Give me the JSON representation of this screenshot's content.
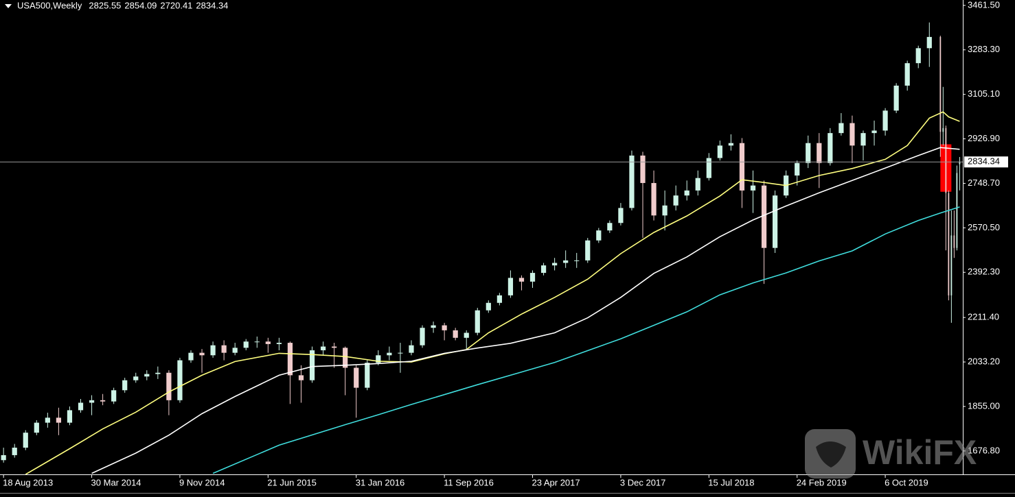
{
  "chart_data": {
    "type": "candlestick",
    "title": "USA500,Weekly",
    "x": [
      "2013-08-18",
      "2013-09-15",
      "2013-10-13",
      "2013-11-10",
      "2013-12-08",
      "2014-01-05",
      "2014-02-02",
      "2014-03-02",
      "2014-03-30",
      "2014-04-27",
      "2014-05-25",
      "2014-06-22",
      "2014-07-20",
      "2014-08-17",
      "2014-09-14",
      "2014-10-12",
      "2014-11-09",
      "2014-12-07",
      "2015-01-04",
      "2015-02-01",
      "2015-03-01",
      "2015-03-29",
      "2015-04-26",
      "2015-05-24",
      "2015-06-21",
      "2015-07-19",
      "2015-08-16",
      "2015-09-13",
      "2015-10-11",
      "2015-11-08",
      "2015-12-06",
      "2016-01-03",
      "2016-01-31",
      "2016-02-28",
      "2016-03-27",
      "2016-04-24",
      "2016-05-22",
      "2016-06-19",
      "2016-07-17",
      "2016-08-14",
      "2016-09-11",
      "2016-10-09",
      "2016-11-06",
      "2016-12-04",
      "2017-01-01",
      "2017-01-29",
      "2017-02-26",
      "2017-03-26",
      "2017-04-23",
      "2017-05-21",
      "2017-06-18",
      "2017-07-16",
      "2017-08-13",
      "2017-09-10",
      "2017-10-08",
      "2017-11-05",
      "2017-12-03",
      "2017-12-31",
      "2018-01-28",
      "2018-02-25",
      "2018-03-25",
      "2018-04-22",
      "2018-05-20",
      "2018-06-17",
      "2018-07-15",
      "2018-08-12",
      "2018-09-09",
      "2018-10-07",
      "2018-11-04",
      "2018-12-02",
      "2018-12-30",
      "2019-01-27",
      "2019-02-24",
      "2019-03-24",
      "2019-04-21",
      "2019-05-19",
      "2019-06-16",
      "2019-07-14",
      "2019-08-11",
      "2019-09-08",
      "2019-10-06",
      "2019-11-03",
      "2019-12-01",
      "2019-12-29",
      "2020-01-26",
      "2020-02-23",
      "2020-03-01",
      "2020-03-08",
      "2020-03-15",
      "2020-03-22",
      "2020-03-29",
      "2020-04-05",
      "2020-04-12"
    ],
    "open": [
      1640,
      1660,
      1690,
      1750,
      1790,
      1810,
      1790,
      1840,
      1870,
      1880,
      1875,
      1920,
      1960,
      1975,
      1985,
      1990,
      1880,
      2040,
      2070,
      2060,
      2100,
      2070,
      2090,
      2115,
      2115,
      2105,
      2110,
      1980,
      1960,
      2080,
      2095,
      2090,
      2010,
      1930,
      2030,
      2060,
      2070,
      2070,
      2100,
      2170,
      2180,
      2160,
      2130,
      2150,
      2240,
      2270,
      2300,
      2370,
      2355,
      2390,
      2420,
      2430,
      2440,
      2440,
      2520,
      2560,
      2590,
      2650,
      2860,
      2750,
      2620,
      2660,
      2700,
      2720,
      2770,
      2850,
      2900,
      2910,
      2720,
      2740,
      2490,
      2700,
      2780,
      2830,
      2910,
      2830,
      2950,
      2990,
      2900,
      2950,
      2960,
      3040,
      3140,
      3230,
      3290,
      3335,
      2955,
      2970,
      2710,
      2300,
      2540,
      2490,
      2825.55
    ],
    "high": [
      1690,
      1705,
      1760,
      1800,
      1830,
      1850,
      1855,
      1885,
      1900,
      1905,
      1930,
      1970,
      1990,
      2000,
      2015,
      2000,
      2050,
      2080,
      2085,
      2115,
      2120,
      2110,
      2125,
      2135,
      2130,
      2130,
      2115,
      2020,
      2095,
      2115,
      2110,
      2095,
      2020,
      2040,
      2080,
      2095,
      2110,
      2120,
      2180,
      2195,
      2190,
      2170,
      2160,
      2250,
      2280,
      2310,
      2400,
      2380,
      2400,
      2430,
      2450,
      2480,
      2470,
      2530,
      2570,
      2600,
      2670,
      2880,
      2875,
      2800,
      2720,
      2740,
      2760,
      2800,
      2870,
      2920,
      2945,
      2930,
      2800,
      2760,
      2720,
      2800,
      2840,
      2940,
      2950,
      2970,
      3030,
      3020,
      2960,
      3000,
      3050,
      3150,
      3240,
      3300,
      3393,
      3340,
      3135,
      2980,
      2720,
      2640,
      2640,
      2820,
      2854.09
    ],
    "low": [
      1630,
      1650,
      1680,
      1740,
      1770,
      1740,
      1780,
      1830,
      1820,
      1860,
      1865,
      1910,
      1950,
      1960,
      1965,
      1820,
      1870,
      2030,
      1990,
      2050,
      2040,
      2060,
      2080,
      2090,
      2070,
      2080,
      1865,
      1870,
      1950,
      2060,
      2010,
      1900,
      1810,
      1920,
      2020,
      2040,
      1990,
      2060,
      2090,
      2150,
      2120,
      2120,
      2080,
      2140,
      2230,
      2260,
      2290,
      2320,
      2330,
      2380,
      2400,
      2410,
      2410,
      2430,
      2510,
      2550,
      2580,
      2640,
      2530,
      2600,
      2560,
      2640,
      2680,
      2700,
      2760,
      2840,
      2880,
      2650,
      2630,
      2346,
      2470,
      2690,
      2740,
      2810,
      2730,
      2820,
      2940,
      2830,
      2840,
      2900,
      2940,
      3030,
      3120,
      3210,
      3215,
      2855,
      2900,
      2480,
      2280,
      2190,
      2450,
      2480,
      2720.41
    ],
    "close": [
      1660,
      1690,
      1750,
      1790,
      1810,
      1790,
      1840,
      1870,
      1880,
      1875,
      1920,
      1960,
      1975,
      1985,
      1990,
      1880,
      2040,
      2070,
      2060,
      2100,
      2070,
      2090,
      2115,
      2115,
      2105,
      2110,
      1980,
      1960,
      2080,
      2095,
      2090,
      2010,
      1930,
      2030,
      2060,
      2070,
      2070,
      2100,
      2170,
      2180,
      2160,
      2130,
      2150,
      2240,
      2270,
      2300,
      2370,
      2355,
      2390,
      2420,
      2430,
      2440,
      2440,
      2520,
      2560,
      2590,
      2650,
      2860,
      2750,
      2620,
      2660,
      2700,
      2720,
      2770,
      2850,
      2900,
      2910,
      2720,
      2740,
      2490,
      2700,
      2780,
      2830,
      2910,
      2830,
      2950,
      2990,
      2900,
      2950,
      2960,
      3040,
      3140,
      3230,
      3290,
      3335,
      2955,
      2970,
      2710,
      2300,
      2540,
      2490,
      2790,
      2834.34
    ],
    "up_color": "#cdf3e6",
    "down_color": "#f0cccc",
    "moving_averages": [
      {
        "color": "#ffff80",
        "x": [
          "2013-10-13",
          "2014-02-02",
          "2014-04-27",
          "2014-07-20",
          "2014-10-12",
          "2015-01-04",
          "2015-03-29",
          "2015-07-19",
          "2015-10-11",
          "2016-01-03",
          "2016-03-27",
          "2016-06-19",
          "2016-09-11",
          "2016-11-06",
          "2017-01-01",
          "2017-03-26",
          "2017-06-18",
          "2017-09-10",
          "2017-12-03",
          "2018-02-25",
          "2018-05-20",
          "2018-08-12",
          "2018-10-07",
          "2018-12-02",
          "2019-01-27",
          "2019-04-21",
          "2019-07-14",
          "2019-10-06",
          "2019-12-01",
          "2020-01-26",
          "2020-03-01",
          "2020-03-15",
          "2020-04-12"
        ],
        "values": [
          1583,
          1686,
          1765,
          1832,
          1913,
          1980,
          2035,
          2068,
          2063,
          2055,
          2036,
          2033,
          2066,
          2083,
          2150,
          2225,
          2292,
          2365,
          2467,
          2552,
          2618,
          2698,
          2763,
          2752,
          2740,
          2780,
          2808,
          2845,
          2900,
          3010,
          3035,
          3015,
          2997
        ]
      },
      {
        "color": "#ffffff",
        "x": [
          "2014-03-30",
          "2014-07-20",
          "2014-10-12",
          "2015-01-04",
          "2015-03-29",
          "2015-07-19",
          "2015-10-11",
          "2016-01-03",
          "2016-03-27",
          "2016-06-19",
          "2016-09-11",
          "2016-12-04",
          "2017-02-26",
          "2017-06-18",
          "2017-09-10",
          "2017-12-03",
          "2018-02-25",
          "2018-05-20",
          "2018-08-12",
          "2018-11-04",
          "2019-01-27",
          "2019-04-21",
          "2019-07-14",
          "2019-10-06",
          "2019-12-29",
          "2020-02-23",
          "2020-04-12"
        ],
        "values": [
          1587,
          1668,
          1740,
          1826,
          1895,
          1980,
          2015,
          2020,
          2027,
          2036,
          2068,
          2089,
          2108,
          2150,
          2210,
          2292,
          2388,
          2454,
          2535,
          2602,
          2658,
          2711,
          2760,
          2810,
          2860,
          2892,
          2885
        ]
      },
      {
        "color": "#40dede",
        "x": [
          "2015-02-01",
          "2015-07-19",
          "2016-01-03",
          "2016-03-27",
          "2016-06-19",
          "2016-12-04",
          "2017-06-18",
          "2017-12-03",
          "2018-05-20",
          "2018-08-12",
          "2018-11-04",
          "2019-01-27",
          "2019-04-21",
          "2019-07-14",
          "2019-10-06",
          "2019-12-29",
          "2020-02-23",
          "2020-04-12"
        ],
        "values": [
          1587,
          1700,
          1782,
          1822,
          1863,
          1942,
          2031,
          2126,
          2234,
          2302,
          2350,
          2390,
          2438,
          2478,
          2546,
          2600,
          2630,
          2654
        ]
      }
    ],
    "rectangle": {
      "x0": "2020-02-23",
      "x1": "2020-03-22",
      "y0": 2715,
      "y1": 2905,
      "color": "#ff0000"
    },
    "xlim": [
      "2013-08-09",
      "2020-04-20"
    ],
    "xticks": [
      {
        "value": "2013-08-18",
        "label": "18 Aug 2013"
      },
      {
        "value": "2014-03-30",
        "label": "30 Mar 2014"
      },
      {
        "value": "2014-11-09",
        "label": "9 Nov 2014"
      },
      {
        "value": "2015-06-21",
        "label": "21 Jun 2015"
      },
      {
        "value": "2016-01-31",
        "label": "31 Jan 2016"
      },
      {
        "value": "2016-09-11",
        "label": "11 Sep 2016"
      },
      {
        "value": "2017-04-23",
        "label": "23 Apr 2017"
      },
      {
        "value": "2017-12-03",
        "label": "3 Dec 2017"
      },
      {
        "value": "2018-07-15",
        "label": "15 Jul 2018"
      },
      {
        "value": "2019-02-24",
        "label": "24 Feb 2019"
      },
      {
        "value": "2019-10-06",
        "label": "6 Oct 2019"
      }
    ],
    "ylim": [
      1583,
      3483
    ],
    "yticks": [
      {
        "value": 3461.5,
        "label": "3461.50"
      },
      {
        "value": 3283.3,
        "label": "3283.30"
      },
      {
        "value": 3105.1,
        "label": "3105.10"
      },
      {
        "value": 2926.9,
        "label": "2926.90"
      },
      {
        "value": 2748.7,
        "label": "2748.70"
      },
      {
        "value": 2570.5,
        "label": "2570.50"
      },
      {
        "value": 2392.3,
        "label": "2392.30"
      },
      {
        "value": 2211.4,
        "label": "2211.40"
      },
      {
        "value": 2033.2,
        "label": "2033.20"
      },
      {
        "value": 1855,
        "label": "1855.00"
      },
      {
        "value": 1676.8,
        "label": "1676.80"
      }
    ],
    "grid": false,
    "watermark": "WikiFX"
  }
}
